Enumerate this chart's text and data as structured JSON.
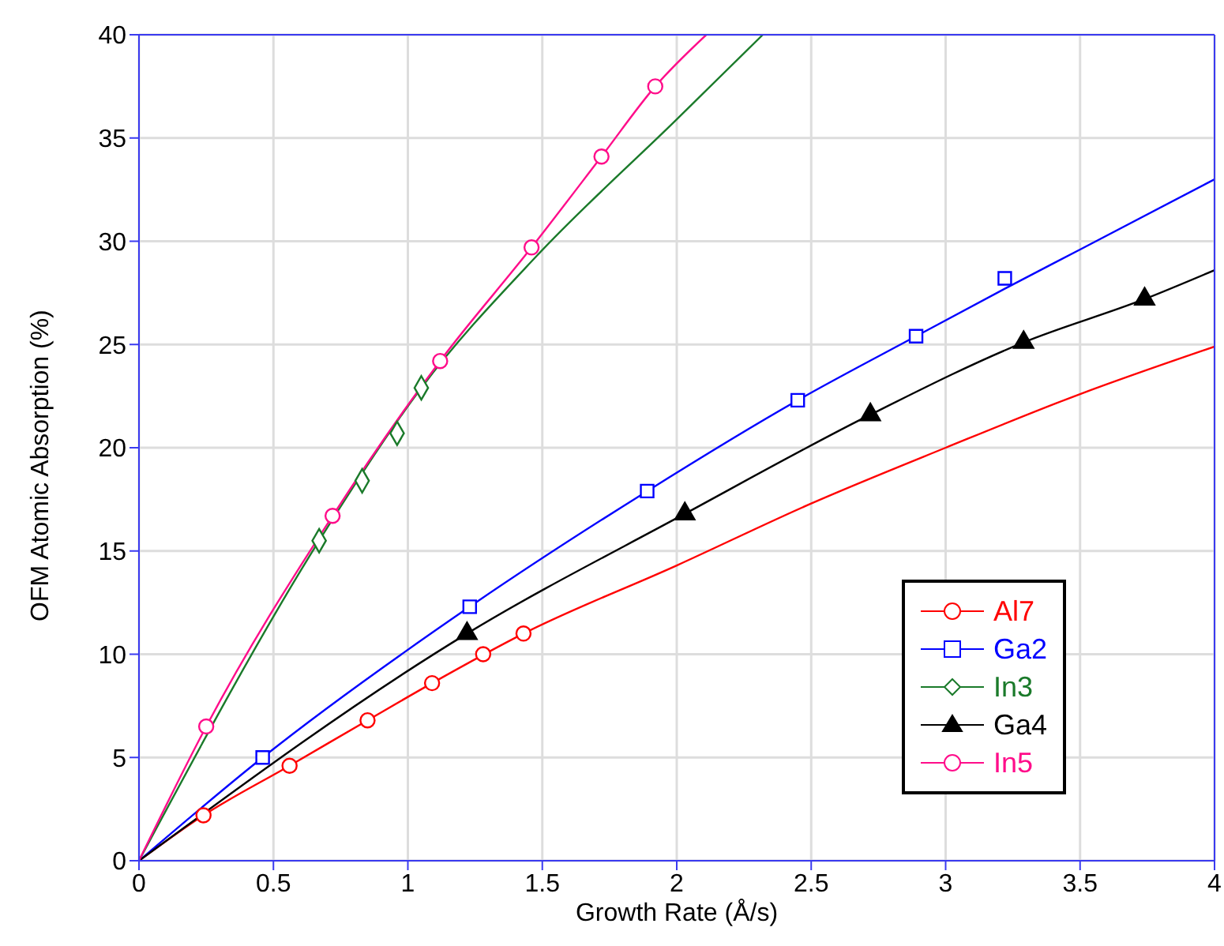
{
  "chart_data": {
    "type": "scatter",
    "xlabel": "Growth Rate (Å/s)",
    "ylabel": "OFM Atomic Absorption (%)",
    "xlim": [
      0,
      4
    ],
    "xticks": [
      0,
      0.5,
      1,
      1.5,
      2,
      2.5,
      3,
      3.5,
      4
    ],
    "ylim": [
      0,
      40
    ],
    "yticks": [
      0,
      5,
      10,
      15,
      20,
      25,
      30,
      35,
      40
    ],
    "grid": true,
    "legend": "bottom right",
    "series": [
      {
        "name": "Al7",
        "color": "#ff0000",
        "marker": "circle",
        "x": [
          0.24,
          0.56,
          0.85,
          1.09,
          1.28,
          1.43
        ],
        "values": [
          2.2,
          4.6,
          6.8,
          8.6,
          10.0,
          11.0
        ]
      },
      {
        "name": "Ga2",
        "color": "#0000ff",
        "marker": "square",
        "x": [
          0.46,
          1.23,
          1.89,
          2.45,
          2.89,
          3.22
        ],
        "values": [
          5.0,
          12.3,
          17.9,
          22.3,
          25.4,
          28.2
        ]
      },
      {
        "name": "In3",
        "color": "#1a7a2a",
        "marker": "diamond",
        "x": [
          0.67,
          0.83,
          0.96,
          1.05
        ],
        "values": [
          15.5,
          18.4,
          20.7,
          22.9
        ]
      },
      {
        "name": "Ga4",
        "color": "#000000",
        "marker": "triangle",
        "x": [
          1.22,
          2.03,
          2.72,
          3.29,
          3.74
        ],
        "values": [
          11.0,
          16.8,
          21.6,
          25.1,
          27.2
        ]
      },
      {
        "name": "In5",
        "color": "#ff0d8a",
        "marker": "circle",
        "x": [
          0.25,
          0.72,
          1.12,
          1.46,
          1.72,
          1.92
        ],
        "values": [
          6.5,
          16.7,
          24.2,
          29.7,
          34.1,
          37.5
        ]
      },
      {
        "type": "line",
        "color": "#ff0000",
        "marker": "none",
        "x": [
          0,
          0.24,
          0.56,
          0.85,
          1.09,
          1.43,
          2,
          2.5,
          3,
          3.5,
          4
        ],
        "values": [
          0,
          2.2,
          4.6,
          6.8,
          8.6,
          11.0,
          14.3,
          17.3,
          20.0,
          22.6,
          24.9
        ]
      },
      {
        "type": "line",
        "color": "#0000ff",
        "marker": "none",
        "x": [
          0,
          0.46,
          1.23,
          1.89,
          2.45,
          2.89,
          3.22,
          3.5,
          4
        ],
        "values": [
          0,
          5.0,
          12.3,
          17.9,
          22.3,
          25.4,
          27.7,
          29.6,
          33.0
        ]
      },
      {
        "type": "line",
        "color": "#1a7a2a",
        "marker": "none",
        "x": [
          0,
          0.67,
          1.05,
          1.48,
          2,
          2.32
        ],
        "values": [
          0,
          15.5,
          22.9,
          29.3,
          35.9,
          40
        ]
      },
      {
        "type": "line",
        "color": "#000000",
        "marker": "none",
        "x": [
          0,
          1.22,
          2.03,
          2.72,
          3.29,
          3.74,
          4
        ],
        "values": [
          0,
          11.0,
          16.8,
          21.6,
          25.1,
          27.2,
          28.6
        ]
      },
      {
        "type": "line",
        "color": "#ff0d8a",
        "marker": "none",
        "x": [
          0,
          0.25,
          0.72,
          1.12,
          1.46,
          1.72,
          1.92,
          2.11
        ],
        "values": [
          0,
          6.5,
          16.7,
          24.2,
          29.7,
          34.1,
          37.5,
          40
        ]
      }
    ]
  }
}
